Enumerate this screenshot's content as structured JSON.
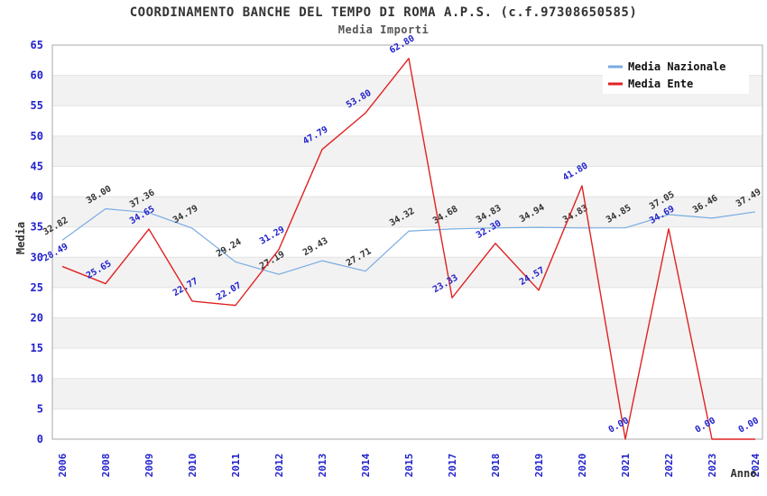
{
  "title": "COORDINAMENTO BANCHE DEL TEMPO DI ROMA A.P.S. (c.f.97308650585)",
  "subtitle": "Media Importi",
  "axes": {
    "y_label": "Media",
    "x_label": "Anno",
    "y_ticks": [
      0,
      5,
      10,
      15,
      20,
      25,
      30,
      35,
      40,
      45,
      50,
      55,
      60,
      65
    ],
    "y_max": 65
  },
  "legend": {
    "position": "top-right",
    "entries": [
      {
        "label": "Media Nazionale",
        "color": "#78ACE2"
      },
      {
        "label": "Media Ente",
        "color": "#E02222"
      }
    ]
  },
  "colors": {
    "axis_text": "#2222CC",
    "national_label": "#333333",
    "ente_label": "#2222CC",
    "band_gray": "#F2F2F2",
    "grid_line": "#E3E3E3",
    "plot_border": "#AAAAAA",
    "title_text": "#333333"
  },
  "chart_data": {
    "type": "line",
    "title": "Media Importi",
    "xlabel": "Anno",
    "ylabel": "Media",
    "ylim": [
      0,
      65
    ],
    "grid": "horizontal-bands",
    "legend_position": "top-right",
    "categories": [
      "2006",
      "2008",
      "2009",
      "2010",
      "2011",
      "2012",
      "2013",
      "2014",
      "2015",
      "2017",
      "2018",
      "2019",
      "2020",
      "2021",
      "2022",
      "2023",
      "2024"
    ],
    "series": [
      {
        "name": "Media Nazionale",
        "color": "#78ACE2",
        "label_color": "#333333",
        "values": [
          32.82,
          38.0,
          37.36,
          34.79,
          29.24,
          27.19,
          29.43,
          27.71,
          34.32,
          34.68,
          34.83,
          34.94,
          34.83,
          34.85,
          37.05,
          36.46,
          37.49
        ]
      },
      {
        "name": "Media Ente",
        "color": "#E02222",
        "label_color": "#2222CC",
        "values": [
          28.49,
          25.65,
          34.65,
          22.77,
          22.07,
          31.29,
          47.79,
          53.8,
          62.8,
          23.33,
          32.3,
          24.57,
          41.8,
          0.0,
          34.69,
          0.0,
          0.0
        ]
      }
    ]
  }
}
